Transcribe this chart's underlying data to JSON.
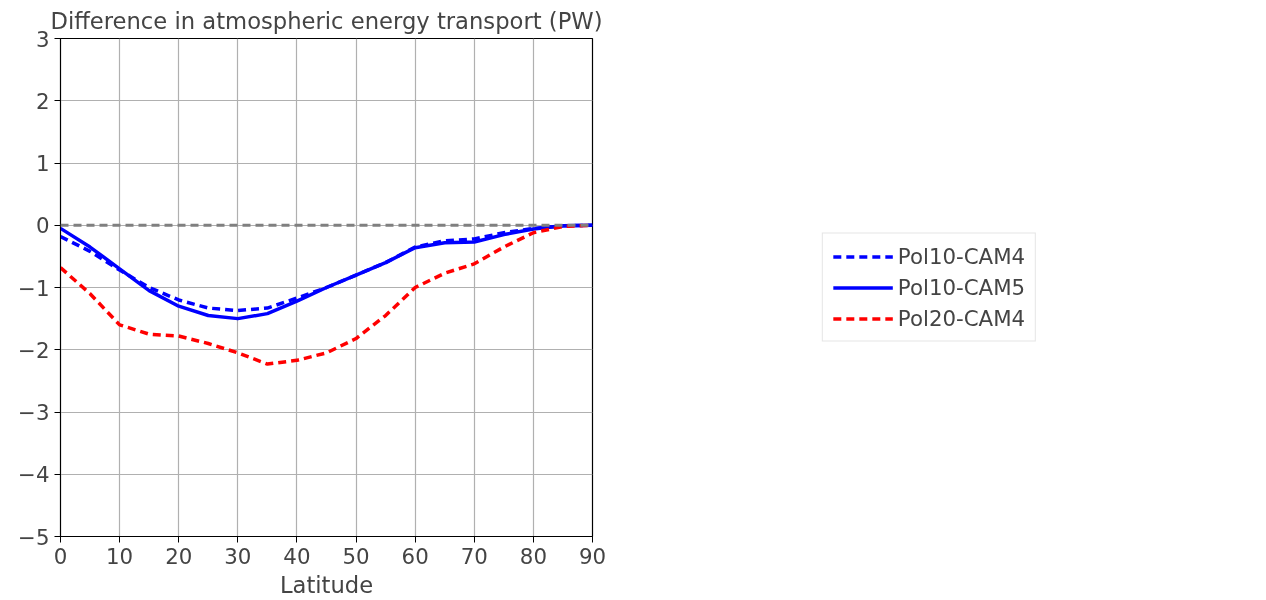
{
  "chart_data": {
    "type": "line",
    "title": "Difference in atmospheric energy transport (PW)",
    "xlabel": "Latitude",
    "x": [
      0,
      5,
      10,
      15,
      20,
      25,
      30,
      35,
      40,
      45,
      50,
      55,
      60,
      65,
      70,
      75,
      80,
      85,
      90
    ],
    "series": [
      {
        "name": "Pol10-CAM4",
        "color": "#0000ff",
        "line_style": "dashed",
        "values": [
          -0.18,
          -0.42,
          -0.72,
          -1.0,
          -1.2,
          -1.33,
          -1.37,
          -1.33,
          -1.17,
          -1.0,
          -0.8,
          -0.6,
          -0.35,
          -0.25,
          -0.22,
          -0.12,
          -0.05,
          -0.01,
          0
        ]
      },
      {
        "name": "Pol10-CAM5",
        "color": "#0000ff",
        "line_style": "solid",
        "values": [
          -0.05,
          -0.35,
          -0.7,
          -1.05,
          -1.3,
          -1.45,
          -1.5,
          -1.42,
          -1.22,
          -1.0,
          -0.8,
          -0.6,
          -0.36,
          -0.28,
          -0.27,
          -0.15,
          -0.06,
          -0.01,
          0
        ]
      },
      {
        "name": "Pol20-CAM4",
        "color": "#ff0000",
        "line_style": "dashed",
        "values": [
          -0.68,
          -1.1,
          -1.6,
          -1.75,
          -1.78,
          -1.9,
          -2.05,
          -2.23,
          -2.17,
          -2.05,
          -1.82,
          -1.45,
          -1.0,
          -0.77,
          -0.62,
          -0.35,
          -0.12,
          -0.02,
          0
        ]
      }
    ],
    "xlim": [
      0,
      90
    ],
    "xticks": [
      0,
      10,
      20,
      30,
      40,
      50,
      60,
      70,
      80,
      90
    ],
    "ylim": [
      -5,
      3
    ],
    "yticks": [
      -5,
      -4,
      -3,
      -2,
      -1,
      0,
      1,
      2,
      3
    ],
    "ref_lines": [
      {
        "axis": "y",
        "value": 0,
        "color": "#808080",
        "line_style": "dashed"
      }
    ],
    "grid": true,
    "legend": "right"
  }
}
